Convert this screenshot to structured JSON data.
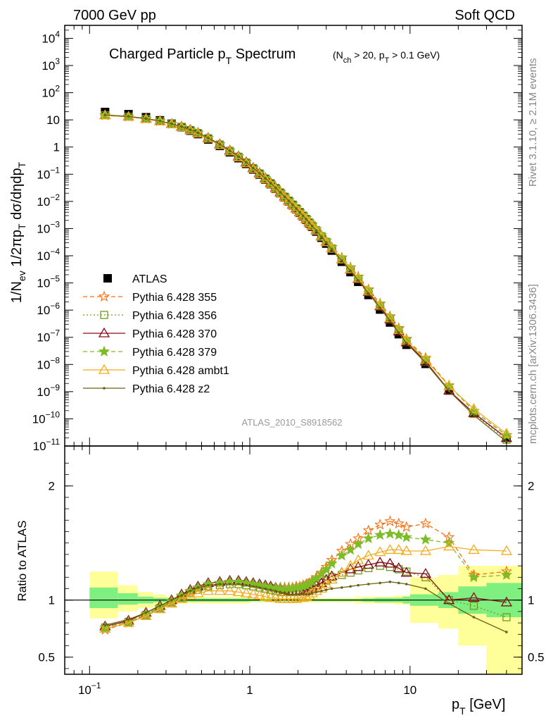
{
  "header": {
    "left": "7000 GeV pp",
    "right": "Soft QCD",
    "rivet": "Rivet 3.1.10, ≥ 2.1M events",
    "mcplots": "mcplots.cern.ch [arXiv:1306.3436]",
    "analysis_id": "ATLAS_2010_S8918562"
  },
  "chart_data": [
    {
      "type": "scatter",
      "panel": "spectrum",
      "title": "Charged Particle p_T Spectrum",
      "subtitle": "(N_ch > 20, p_T > 0.1 GeV)",
      "ylabel": "1/N_ev 1/2πp_T dσ/dηdp_T",
      "xscale": "log",
      "yscale": "log",
      "xlim": [
        0.07,
        50
      ],
      "ylim": [
        1e-11,
        30000
      ],
      "legend_position": "middle-left",
      "x": [
        0.125,
        0.175,
        0.225,
        0.275,
        0.325,
        0.375,
        0.425,
        0.475,
        0.55,
        0.65,
        0.75,
        0.85,
        0.95,
        1.05,
        1.15,
        1.25,
        1.35,
        1.45,
        1.55,
        1.65,
        1.75,
        1.85,
        1.95,
        2.05,
        2.15,
        2.25,
        2.35,
        2.45,
        2.6,
        2.8,
        3.0,
        3.25,
        3.75,
        4.25,
        4.75,
        5.5,
        6.5,
        7.5,
        8.5,
        9.5,
        12.5,
        17.5,
        25.0,
        40.0
      ],
      "series": [
        {
          "name": "ATLAS",
          "marker": "square",
          "color": "#000000",
          "values": [
            19.5,
            16.2,
            12.5,
            9.6,
            7.2,
            5.4,
            4.0,
            3.0,
            1.9,
            1.1,
            0.64,
            0.39,
            0.24,
            0.15,
            0.097,
            0.064,
            0.043,
            0.029,
            0.02,
            0.014,
            0.01,
            0.0072,
            0.0052,
            0.0038,
            0.0028,
            0.0021,
            0.00155,
            0.00117,
            0.00078,
            0.00046,
            0.00028,
            0.000155,
            6e-05,
            2.5e-05,
            1.1e-05,
            3.6e-06,
            1.05e-06,
            3.5e-07,
            1.3e-07,
            5.3e-08,
            1.05e-08,
            1.1e-09,
            1.6e-10,
            2e-11
          ]
        },
        {
          "name": "Pythia 6.428 355",
          "marker": "star-open",
          "line": "dashed",
          "color": "#ff6d0a",
          "ratio": [
            0.74,
            0.8,
            0.87,
            0.93,
            0.98,
            1.03,
            1.07,
            1.1,
            1.13,
            1.15,
            1.16,
            1.16,
            1.15,
            1.14,
            1.13,
            1.12,
            1.12,
            1.11,
            1.11,
            1.11,
            1.11,
            1.11,
            1.12,
            1.12,
            1.13,
            1.14,
            1.15,
            1.17,
            1.2,
            1.24,
            1.29,
            1.35,
            1.43,
            1.49,
            1.54,
            1.61,
            1.66,
            1.69,
            1.67,
            1.64,
            1.67,
            1.55,
            1.22,
            1.25
          ]
        },
        {
          "name": "Pythia 6.428 356",
          "marker": "square-open",
          "line": "dotted",
          "color": "#6f9a1d",
          "ratio": [
            0.76,
            0.81,
            0.87,
            0.93,
            0.98,
            1.02,
            1.06,
            1.09,
            1.12,
            1.13,
            1.14,
            1.14,
            1.13,
            1.12,
            1.11,
            1.1,
            1.09,
            1.08,
            1.07,
            1.07,
            1.07,
            1.07,
            1.07,
            1.08,
            1.08,
            1.09,
            1.1,
            1.11,
            1.13,
            1.15,
            1.17,
            1.2,
            1.22,
            1.24,
            1.26,
            1.28,
            1.3,
            1.29,
            1.27,
            1.25,
            1.2,
            1.0,
            0.95,
            0.85
          ]
        },
        {
          "name": "Pythia 6.428 370",
          "marker": "triangle-open",
          "line": "solid",
          "color": "#8b0a1a",
          "ratio": [
            0.77,
            0.82,
            0.89,
            0.95,
            1.0,
            1.05,
            1.09,
            1.12,
            1.15,
            1.16,
            1.17,
            1.17,
            1.16,
            1.15,
            1.14,
            1.13,
            1.12,
            1.11,
            1.1,
            1.09,
            1.08,
            1.08,
            1.08,
            1.08,
            1.08,
            1.09,
            1.1,
            1.11,
            1.13,
            1.15,
            1.18,
            1.21,
            1.24,
            1.27,
            1.29,
            1.31,
            1.33,
            1.32,
            1.28,
            1.24,
            1.23,
            1.0,
            1.02,
            0.98
          ]
        },
        {
          "name": "Pythia 6.428 379",
          "marker": "star",
          "line": "dashed",
          "color": "#7ebc27",
          "ratio": [
            0.76,
            0.81,
            0.88,
            0.94,
            0.99,
            1.04,
            1.08,
            1.11,
            1.14,
            1.15,
            1.16,
            1.16,
            1.15,
            1.14,
            1.13,
            1.12,
            1.11,
            1.11,
            1.1,
            1.1,
            1.1,
            1.1,
            1.11,
            1.11,
            1.12,
            1.13,
            1.14,
            1.16,
            1.19,
            1.23,
            1.27,
            1.32,
            1.39,
            1.44,
            1.49,
            1.54,
            1.57,
            1.58,
            1.57,
            1.55,
            1.53,
            1.5,
            1.2,
            1.22
          ]
        },
        {
          "name": "Pythia 6.428 ambt1",
          "marker": "triangle-open",
          "line": "solid",
          "color": "#f2ac1e",
          "ratio": [
            0.75,
            0.8,
            0.86,
            0.92,
            0.97,
            1.01,
            1.04,
            1.06,
            1.08,
            1.08,
            1.08,
            1.07,
            1.06,
            1.05,
            1.04,
            1.03,
            1.02,
            1.02,
            1.01,
            1.01,
            1.01,
            1.01,
            1.01,
            1.02,
            1.02,
            1.03,
            1.04,
            1.06,
            1.08,
            1.1,
            1.14,
            1.18,
            1.24,
            1.3,
            1.35,
            1.39,
            1.42,
            1.44,
            1.44,
            1.43,
            1.43,
            1.47,
            1.44,
            1.43
          ]
        },
        {
          "name": "Pythia 6.428 z2",
          "marker": "dot",
          "line": "solid",
          "color": "#6b6211",
          "ratio": [
            0.78,
            0.83,
            0.89,
            0.95,
            1.0,
            1.04,
            1.08,
            1.11,
            1.13,
            1.14,
            1.14,
            1.14,
            1.13,
            1.12,
            1.11,
            1.1,
            1.09,
            1.08,
            1.07,
            1.06,
            1.05,
            1.05,
            1.05,
            1.05,
            1.05,
            1.05,
            1.05,
            1.06,
            1.07,
            1.08,
            1.09,
            1.1,
            1.11,
            1.12,
            1.13,
            1.14,
            1.15,
            1.16,
            1.15,
            1.14,
            1.1,
            0.97,
            0.85,
            0.72
          ]
        }
      ]
    },
    {
      "type": "line",
      "panel": "ratio",
      "ylabel": "Ratio to ATLAS",
      "xlabel": "p_T [GeV]",
      "xscale": "log",
      "xlim": [
        0.07,
        50
      ],
      "ylim": [
        0.35,
        2.35
      ],
      "band_edges": [
        0.1,
        0.15,
        0.2,
        0.25,
        0.3,
        1.0,
        1.5,
        2.0,
        2.5,
        3.0,
        3.5,
        4.0,
        4.5,
        5.0,
        6.0,
        7.0,
        8.0,
        9.0,
        10.0,
        15.0,
        20.0,
        30.0,
        50.0
      ],
      "stat_band": [
        [
          0.93,
          1.11
        ],
        [
          0.96,
          1.06
        ],
        [
          0.97,
          1.03
        ],
        [
          0.98,
          1.02
        ],
        [
          0.985,
          1.015
        ],
        [
          0.99,
          1.01
        ],
        [
          0.99,
          1.01
        ],
        [
          0.99,
          1.01
        ],
        [
          0.99,
          1.01
        ],
        [
          0.99,
          1.01
        ],
        [
          0.99,
          1.01
        ],
        [
          0.99,
          1.01
        ],
        [
          0.99,
          1.01
        ],
        [
          0.985,
          1.015
        ],
        [
          0.98,
          1.02
        ],
        [
          0.98,
          1.02
        ],
        [
          0.98,
          1.02
        ],
        [
          0.97,
          1.03
        ],
        [
          0.95,
          1.05
        ],
        [
          0.93,
          1.07
        ],
        [
          0.88,
          1.12
        ],
        [
          0.85,
          1.15
        ]
      ],
      "syst_band": [
        [
          0.84,
          1.25
        ],
        [
          0.9,
          1.13
        ],
        [
          0.93,
          1.07
        ],
        [
          0.95,
          1.05
        ],
        [
          0.97,
          1.03
        ],
        [
          0.98,
          1.02
        ],
        [
          0.98,
          1.02
        ],
        [
          0.98,
          1.02
        ],
        [
          0.98,
          1.02
        ],
        [
          0.98,
          1.02
        ],
        [
          0.98,
          1.02
        ],
        [
          0.98,
          1.02
        ],
        [
          0.97,
          1.03
        ],
        [
          0.97,
          1.03
        ],
        [
          0.97,
          1.03
        ],
        [
          0.97,
          1.03
        ],
        [
          0.96,
          1.04
        ],
        [
          0.96,
          1.04
        ],
        [
          0.8,
          1.2
        ],
        [
          0.75,
          1.22
        ],
        [
          0.6,
          1.3
        ],
        [
          0.35,
          1.3
        ]
      ],
      "labels": [
        "2",
        "1",
        "0.5",
        "10⁻¹",
        "1",
        "10"
      ]
    }
  ]
}
